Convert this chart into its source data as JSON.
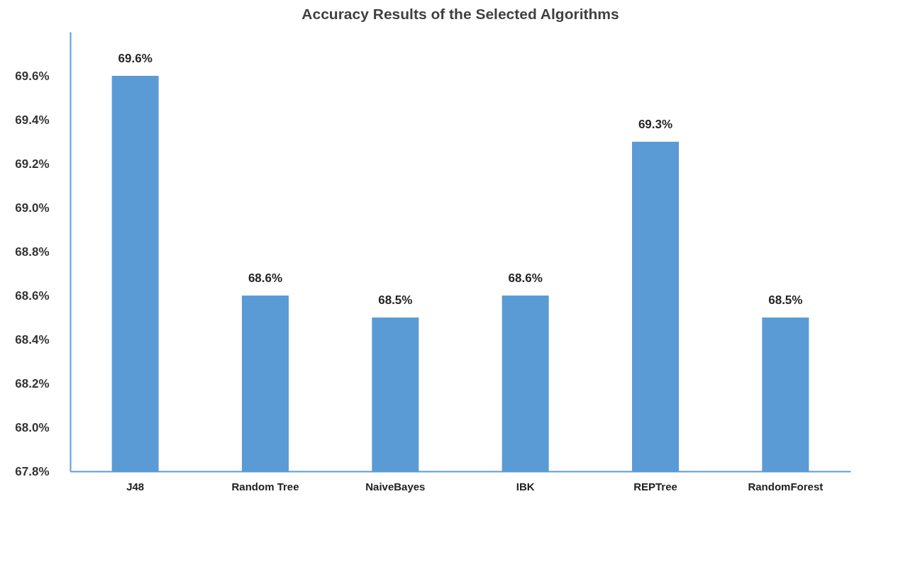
{
  "chart_data": {
    "type": "bar",
    "title": "Accuracy Results of the Selected Algorithms",
    "categories": [
      "J48",
      "Random Tree",
      "NaiveBayes",
      "IBK",
      "REPTree",
      "RandomForest"
    ],
    "values": [
      69.6,
      68.6,
      68.5,
      68.6,
      69.3,
      68.5
    ],
    "value_labels": [
      "69.6%",
      "68.6%",
      "68.5%",
      "68.6%",
      "69.3%",
      "68.5%"
    ],
    "color": "#5b9bd5",
    "ylim": [
      67.8,
      69.8
    ],
    "yticks": [
      {
        "value": 67.8,
        "label": "67.8%"
      },
      {
        "value": 68.0,
        "label": "68.0%"
      },
      {
        "value": 68.2,
        "label": "68.2%"
      },
      {
        "value": 68.4,
        "label": "68.4%"
      },
      {
        "value": 68.6,
        "label": "68.6%"
      },
      {
        "value": 68.8,
        "label": "68.8%"
      },
      {
        "value": 69.0,
        "label": "69.0%"
      },
      {
        "value": 69.2,
        "label": "69.2%"
      },
      {
        "value": 69.4,
        "label": "69.4%"
      },
      {
        "value": 69.6,
        "label": "69.6%"
      }
    ],
    "grid": false
  }
}
